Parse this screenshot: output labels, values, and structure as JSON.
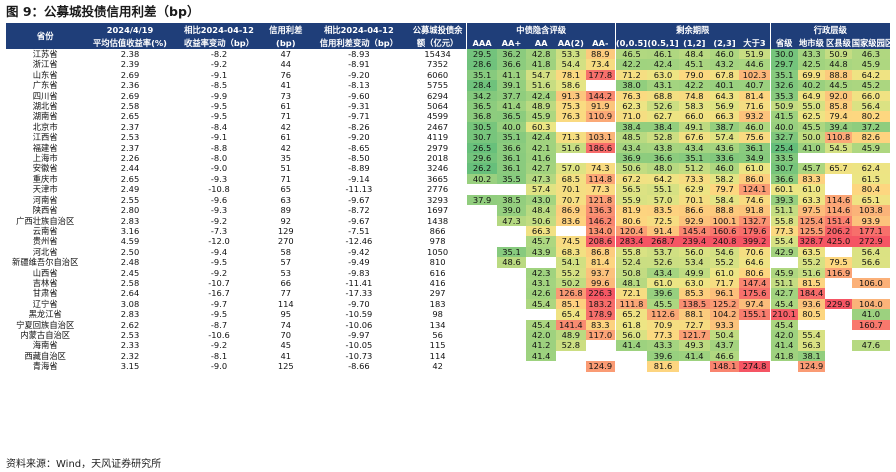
{
  "title": "图 9：公募城投债信用利差（bp）",
  "source": "资料来源：Wind，天风证券研究所",
  "header": {
    "province": "省份",
    "yield_date": "2024/4/19",
    "yield_sub": "平均估值收益率(%)",
    "yield_chg_top": "相比2024-04-12",
    "yield_chg_sub": "收益率变动（bp）",
    "spread_top": "信用利差",
    "spread_sub": "(bp)",
    "spread_chg_top": "相比2024-04-12",
    "spread_chg_sub": "信用利差变动（bp）",
    "bal_top": "公募城投债余",
    "bal_sub": "额（亿元）",
    "group_rating": "中债隐含评级",
    "group_term": "剩余期限",
    "group_admin": "行政层级",
    "ratings": [
      "AAA",
      "AA+",
      "AA",
      "AA(2)",
      "AA-"
    ],
    "terms": [
      "(0,0.5]",
      "(0.5,1]",
      "(1,2]",
      "(2,3]",
      "大于3"
    ],
    "admin": [
      "省级",
      "地市级",
      "区县级",
      "国家级园区"
    ]
  },
  "rows": [
    {
      "p": "江苏省",
      "y": "2.38",
      "yc": "-8.2",
      "s": "47",
      "sc": "-8.93",
      "b": "15434",
      "r": [
        "29.5",
        "36.2",
        "42.8",
        "53.3",
        "88.9"
      ],
      "t": [
        "46.5",
        "46.1",
        "48.4",
        "46.0",
        "51.9"
      ],
      "a": [
        "30.0",
        "43.3",
        "50.9",
        "46.3"
      ]
    },
    {
      "p": "浙江省",
      "y": "2.39",
      "yc": "-9.2",
      "s": "44",
      "sc": "-8.91",
      "b": "7352",
      "r": [
        "28.6",
        "36.6",
        "41.8",
        "54.4",
        "73.4"
      ],
      "t": [
        "42.2",
        "42.4",
        "45.1",
        "43.2",
        "44.6"
      ],
      "a": [
        "29.7",
        "42.5",
        "44.8",
        "45.9"
      ]
    },
    {
      "p": "山东省",
      "y": "2.69",
      "yc": "-9.1",
      "s": "76",
      "sc": "-9.20",
      "b": "6060",
      "r": [
        "35.1",
        "41.1",
        "54.7",
        "78.1",
        "177.8"
      ],
      "t": [
        "71.2",
        "63.0",
        "79.0",
        "67.8",
        "102.3"
      ],
      "a": [
        "35.1",
        "69.9",
        "88.8",
        "64.2"
      ]
    },
    {
      "p": "广东省",
      "y": "2.36",
      "yc": "-8.5",
      "s": "41",
      "sc": "-8.13",
      "b": "5755",
      "r": [
        "28.4",
        "39.1",
        "51.6",
        "58.6",
        ""
      ],
      "t": [
        "38.0",
        "43.1",
        "42.2",
        "40.1",
        "40.7"
      ],
      "a": [
        "32.6",
        "40.2",
        "44.5",
        "45.2"
      ]
    },
    {
      "p": "四川省",
      "y": "2.69",
      "yc": "-9.9",
      "s": "73",
      "sc": "-9.60",
      "b": "6294",
      "r": [
        "34.2",
        "37.7",
        "42.4",
        "91.3",
        "144.2"
      ],
      "t": [
        "76.3",
        "68.8",
        "74.8",
        "64.3",
        "81.4"
      ],
      "a": [
        "35.3",
        "64.9",
        "92.0",
        "66.0"
      ]
    },
    {
      "p": "湖北省",
      "y": "2.58",
      "yc": "-9.5",
      "s": "61",
      "sc": "-9.31",
      "b": "5064",
      "r": [
        "36.5",
        "41.4",
        "48.9",
        "75.3",
        "91.9"
      ],
      "t": [
        "62.3",
        "52.6",
        "58.3",
        "56.9",
        "71.6"
      ],
      "a": [
        "50.9",
        "55.0",
        "85.8",
        "56.4"
      ]
    },
    {
      "p": "湖南省",
      "y": "2.65",
      "yc": "-9.5",
      "s": "71",
      "sc": "-9.71",
      "b": "4599",
      "r": [
        "36.8",
        "36.5",
        "45.9",
        "76.3",
        "110.9"
      ],
      "t": [
        "71.0",
        "62.7",
        "66.0",
        "66.3",
        "93.2"
      ],
      "a": [
        "41.5",
        "62.5",
        "79.4",
        "80.2"
      ]
    },
    {
      "p": "北京市",
      "y": "2.37",
      "yc": "-8.4",
      "s": "42",
      "sc": "-8.26",
      "b": "2467",
      "r": [
        "30.5",
        "40.0",
        "60.3",
        "",
        ""
      ],
      "t": [
        "38.4",
        "38.4",
        "49.1",
        "38.7",
        "46.0"
      ],
      "a": [
        "40.0",
        "45.5",
        "39.4",
        "37.2"
      ]
    },
    {
      "p": "江西省",
      "y": "2.53",
      "yc": "-9.1",
      "s": "61",
      "sc": "-9.20",
      "b": "4119",
      "r": [
        "30.7",
        "35.1",
        "42.4",
        "71.3",
        "103.1"
      ],
      "t": [
        "48.5",
        "52.8",
        "67.6",
        "57.4",
        "75.6"
      ],
      "a": [
        "32.7",
        "50.0",
        "110.8",
        "82.6"
      ]
    },
    {
      "p": "福建省",
      "y": "2.37",
      "yc": "-8.8",
      "s": "42",
      "sc": "-8.65",
      "b": "2979",
      "r": [
        "26.5",
        "36.6",
        "42.1",
        "51.6",
        "186.6"
      ],
      "t": [
        "43.4",
        "43.8",
        "43.4",
        "43.6",
        "36.1"
      ],
      "a": [
        "25.4",
        "41.0",
        "54.5",
        "45.9"
      ]
    },
    {
      "p": "上海市",
      "y": "2.26",
      "yc": "-8.0",
      "s": "35",
      "sc": "-8.50",
      "b": "2018",
      "r": [
        "29.6",
        "36.1",
        "41.6",
        "",
        ""
      ],
      "t": [
        "36.9",
        "36.6",
        "35.1",
        "33.6",
        "34.9"
      ],
      "a": [
        "33.5",
        "",
        "",
        ""
      ]
    },
    {
      "p": "安徽省",
      "y": "2.44",
      "yc": "-9.0",
      "s": "51",
      "sc": "-8.89",
      "b": "3246",
      "r": [
        "26.2",
        "36.1",
        "42.7",
        "57.0",
        "74.3"
      ],
      "t": [
        "50.6",
        "48.0",
        "51.2",
        "46.0",
        "61.0"
      ],
      "a": [
        "30.7",
        "45.7",
        "65.7",
        "62.4"
      ]
    },
    {
      "p": "重庆市",
      "y": "2.65",
      "yc": "-9.3",
      "s": "71",
      "sc": "-9.14",
      "b": "3665",
      "r": [
        "40.2",
        "35.5",
        "47.3",
        "68.5",
        "114.8"
      ],
      "t": [
        "67.2",
        "64.2",
        "73.3",
        "58.2",
        "86.0"
      ],
      "a": [
        "36.6",
        "83.3",
        "",
        "61.5"
      ]
    },
    {
      "p": "天津市",
      "y": "2.49",
      "yc": "-10.8",
      "s": "65",
      "sc": "-11.13",
      "b": "2776",
      "r": [
        "",
        "",
        "57.4",
        "70.1",
        "77.3"
      ],
      "t": [
        "56.5",
        "55.1",
        "62.9",
        "79.7",
        "124.1"
      ],
      "a": [
        "60.1",
        "61.0",
        "",
        "80.4"
      ]
    },
    {
      "p": "河南省",
      "y": "2.55",
      "yc": "-9.6",
      "s": "63",
      "sc": "-9.67",
      "b": "3293",
      "r": [
        "37.9",
        "38.5",
        "43.0",
        "70.7",
        "121.8"
      ],
      "t": [
        "55.9",
        "57.0",
        "70.1",
        "58.4",
        "74.6"
      ],
      "a": [
        "39.3",
        "63.3",
        "114.6",
        "65.1"
      ]
    },
    {
      "p": "陕西省",
      "y": "2.80",
      "yc": "-9.3",
      "s": "89",
      "sc": "-8.72",
      "b": "1697",
      "r": [
        "",
        "39.0",
        "48.4",
        "86.9",
        "136.3"
      ],
      "t": [
        "81.9",
        "83.5",
        "86.6",
        "88.8",
        "91.8"
      ],
      "a": [
        "51.1",
        "97.5",
        "114.6",
        "103.8"
      ]
    },
    {
      "p": "广西壮族自治区",
      "y": "2.83",
      "yc": "-9.2",
      "s": "92",
      "sc": "-9.67",
      "b": "1438",
      "r": [
        "",
        "47.3",
        "50.6",
        "83.6",
        "146.2"
      ],
      "t": [
        "80.6",
        "72.5",
        "92.9",
        "100.1",
        "132.7"
      ],
      "a": [
        "55.8",
        "125.4",
        "151.4",
        "93.9"
      ]
    },
    {
      "p": "云南省",
      "y": "3.16",
      "yc": "-7.3",
      "s": "129",
      "sc": "-7.51",
      "b": "866",
      "r": [
        "",
        "",
        "66.3",
        "",
        "134.0"
      ],
      "t": [
        "120.4",
        "91.4",
        "145.4",
        "160.6",
        "179.6"
      ],
      "a": [
        "77.3",
        "125.5",
        "206.2",
        "177.1"
      ]
    },
    {
      "p": "贵州省",
      "y": "4.59",
      "yc": "-12.0",
      "s": "270",
      "sc": "-12.46",
      "b": "978",
      "r": [
        "",
        "",
        "45.7",
        "74.5",
        "208.6"
      ],
      "t": [
        "283.4",
        "268.7",
        "239.4",
        "240.8",
        "399.2"
      ],
      "a": [
        "55.4",
        "328.7",
        "425.0",
        "272.9"
      ]
    },
    {
      "p": "河北省",
      "y": "2.50",
      "yc": "-9.4",
      "s": "58",
      "sc": "-9.42",
      "b": "1050",
      "r": [
        "",
        "35.1",
        "43.9",
        "68.3",
        "86.8"
      ],
      "t": [
        "55.8",
        "53.7",
        "56.0",
        "54.6",
        "70.6"
      ],
      "a": [
        "42.9",
        "63.5",
        "",
        "56.4"
      ]
    },
    {
      "p": "新疆维吾尔自治区",
      "y": "2.48",
      "yc": "-9.5",
      "s": "57",
      "sc": "-9.49",
      "b": "810",
      "r": [
        "",
        "48.6",
        "",
        "54.1",
        "81.4"
      ],
      "t": [
        "52.4",
        "52.6",
        "53.4",
        "55.2",
        "64.6"
      ],
      "a": [
        "",
        "55.2",
        "79.5",
        "56.6"
      ]
    },
    {
      "p": "山西省",
      "y": "2.45",
      "yc": "-9.2",
      "s": "53",
      "sc": "-9.83",
      "b": "616",
      "r": [
        "",
        "",
        "42.3",
        "55.2",
        "93.7"
      ],
      "t": [
        "50.8",
        "43.4",
        "49.9",
        "61.0",
        "80.6"
      ],
      "a": [
        "45.9",
        "51.6",
        "116.9",
        ""
      ]
    },
    {
      "p": "吉林省",
      "y": "2.58",
      "yc": "-10.7",
      "s": "66",
      "sc": "-11.41",
      "b": "416",
      "r": [
        "",
        "",
        "43.1",
        "50.2",
        "99.6"
      ],
      "t": [
        "48.1",
        "61.0",
        "63.0",
        "71.7",
        "147.4"
      ],
      "a": [
        "51.1",
        "81.5",
        "",
        "106.0"
      ]
    },
    {
      "p": "甘肃省",
      "y": "2.64",
      "yc": "-16.7",
      "s": "77",
      "sc": "-17.33",
      "b": "297",
      "r": [
        "",
        "",
        "42.6",
        "126.8",
        "226.3"
      ],
      "t": [
        "72.1",
        "39.6",
        "85.3",
        "96.1",
        "175.6"
      ],
      "a": [
        "42.7",
        "184.4",
        "",
        ""
      ]
    },
    {
      "p": "辽宁省",
      "y": "3.08",
      "yc": "-9.7",
      "s": "114",
      "sc": "-9.70",
      "b": "183",
      "r": [
        "",
        "",
        "45.4",
        "85.1",
        "183.2"
      ],
      "t": [
        "111.8",
        "45.5",
        "138.5",
        "125.2",
        "97.4"
      ],
      "a": [
        "45.4",
        "93.6",
        "229.9",
        "104.0"
      ]
    },
    {
      "p": "黑龙江省",
      "y": "2.83",
      "yc": "-9.5",
      "s": "95",
      "sc": "-10.59",
      "b": "98",
      "r": [
        "",
        "",
        "",
        "65.4",
        "178.9"
      ],
      "t": [
        "65.2",
        "112.6",
        "88.1",
        "104.2",
        "155.1"
      ],
      "a": [
        "210.1",
        "80.5",
        "",
        "41.0"
      ]
    },
    {
      "p": "宁夏回族自治区",
      "y": "2.62",
      "yc": "-8.7",
      "s": "74",
      "sc": "-10.06",
      "b": "134",
      "r": [
        "",
        "",
        "45.4",
        "141.4",
        "83.3"
      ],
      "t": [
        "61.8",
        "70.9",
        "72.7",
        "93.3",
        ""
      ],
      "a": [
        "45.4",
        "",
        "",
        "160.7"
      ]
    },
    {
      "p": "内蒙古自治区",
      "y": "2.53",
      "yc": "-10.6",
      "s": "70",
      "sc": "-9.97",
      "b": "56",
      "r": [
        "",
        "",
        "42.0",
        "48.9",
        "117.0"
      ],
      "t": [
        "56.0",
        "77.3",
        "121.7",
        "50.4",
        ""
      ],
      "a": [
        "42.0",
        "55.4",
        "",
        ""
      ]
    },
    {
      "p": "海南省",
      "y": "2.33",
      "yc": "-9.2",
      "s": "45",
      "sc": "-10.05",
      "b": "115",
      "r": [
        "",
        "",
        "41.2",
        "52.8",
        ""
      ],
      "t": [
        "41.4",
        "43.3",
        "49.3",
        "43.7",
        ""
      ],
      "a": [
        "41.4",
        "56.3",
        "",
        "47.6"
      ]
    },
    {
      "p": "西藏自治区",
      "y": "2.32",
      "yc": "-8.1",
      "s": "41",
      "sc": "-10.73",
      "b": "114",
      "r": [
        "",
        "",
        "41.4",
        "",
        ""
      ],
      "t": [
        "",
        "39.6",
        "41.4",
        "46.6",
        ""
      ],
      "a": [
        "41.8",
        "38.1",
        "",
        ""
      ]
    },
    {
      "p": "青海省",
      "y": "3.15",
      "yc": "-9.0",
      "s": "125",
      "sc": "-8.66",
      "b": "42",
      "r": [
        "",
        "",
        "",
        "",
        "124.9"
      ],
      "t": [
        "",
        "81.6",
        "",
        "148.1",
        "274.8"
      ],
      "a": [
        "",
        "124.9",
        "",
        ""
      ]
    }
  ]
}
